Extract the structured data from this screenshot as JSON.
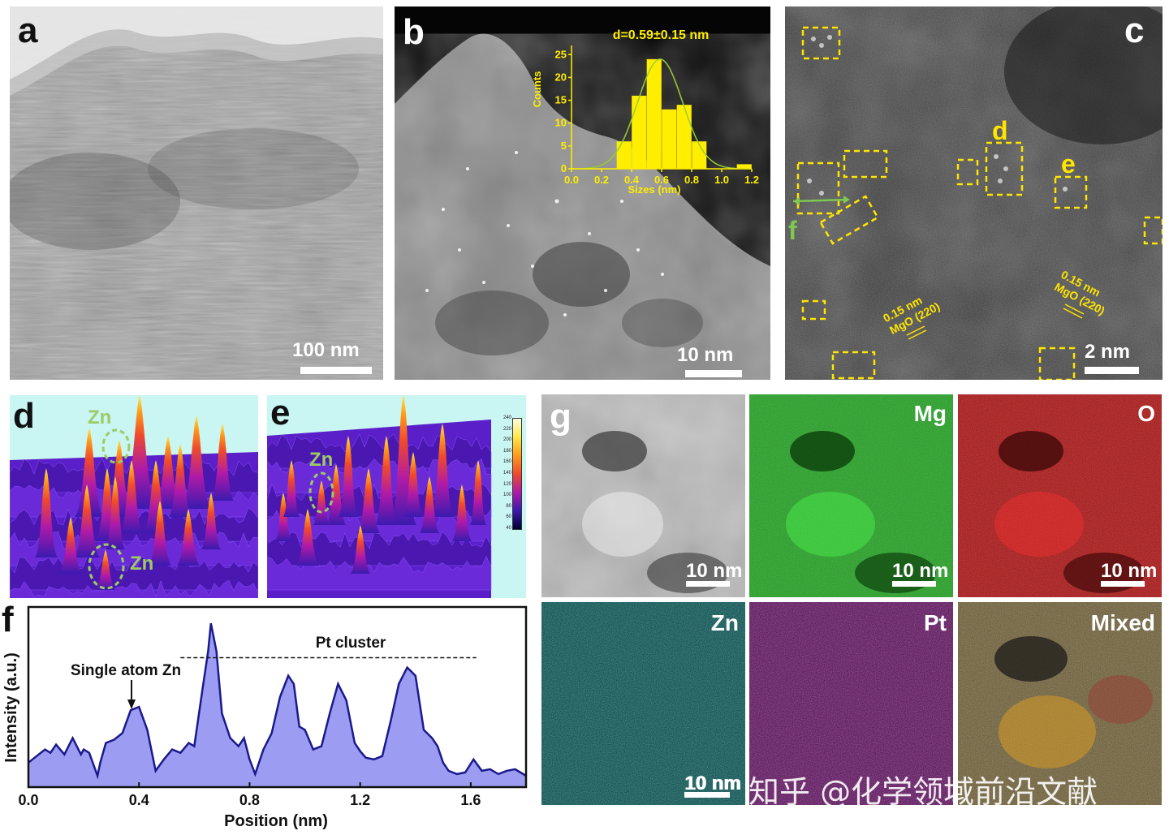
{
  "panels": {
    "a": {
      "label": "a",
      "scale": "100 nm"
    },
    "b": {
      "label": "b",
      "scale": "10 nm"
    },
    "c": {
      "label": "c",
      "scale": "2 nm",
      "box_d": "d",
      "box_e": "e",
      "box_f": "f",
      "lattice1": "0.15 nm",
      "lattice1b": "MgO (220)",
      "lattice2": "0.15 nm",
      "lattice2b": "MgO (220)"
    },
    "d": {
      "label": "d",
      "zn1": "Zn",
      "zn2": "Zn"
    },
    "e": {
      "label": "e",
      "zn": "Zn",
      "colorbar_ticks": [
        "240",
        "220",
        "200",
        "180",
        "160",
        "140",
        "120",
        "100",
        "80",
        "60",
        "40"
      ]
    },
    "f": {
      "label": "f"
    },
    "g": {
      "label": "g",
      "scale": "10 nm",
      "tiles": [
        "",
        "Mg",
        "O",
        "Zn",
        "Pt",
        "Mixed"
      ]
    }
  },
  "watermark": "知乎 @化学领域前沿文献",
  "colors": {
    "box": "#ffe500",
    "inset": "#ffee00",
    "zn_circle": "#9ccc65",
    "profile_fill": "#9b9cf2",
    "profile_line": "#1a1a8c"
  },
  "chart_data": [
    {
      "type": "bar",
      "title": "d=0.59±0.15 nm",
      "xlabel": "Sizes (nm)",
      "ylabel": "Counts",
      "x": [
        0.35,
        0.45,
        0.55,
        0.65,
        0.75,
        0.85,
        1.15
      ],
      "values": [
        6,
        16,
        24,
        13,
        14,
        6,
        1
      ],
      "xlim": [
        0.0,
        1.2
      ],
      "ylim": [
        0,
        27
      ],
      "xticks": [
        "0.0",
        "0.2",
        "0.4",
        "0.6",
        "0.8",
        "1.0",
        "1.2"
      ],
      "yticks": [
        "0",
        "5",
        "10",
        "15",
        "20",
        "25"
      ],
      "fit": {
        "type": "gaussian",
        "mean": 0.59,
        "sd": 0.15,
        "peak": 24
      }
    },
    {
      "type": "area",
      "xlabel": "Position (nm)",
      "ylabel": "Intensity (a.u.)",
      "xlim": [
        0.0,
        1.8
      ],
      "ylim": [
        0,
        1
      ],
      "xticks": [
        "0.0",
        "0.4",
        "0.8",
        "1.2",
        "1.6"
      ],
      "annotations": [
        {
          "text": "Single atom Zn",
          "x": 0.37
        },
        {
          "text": "Pt cluster",
          "x": 1.08
        }
      ],
      "reference_line": {
        "y": 0.74,
        "x_start": 0.55,
        "x_end": 1.62
      },
      "x": [
        0.0,
        0.03,
        0.06,
        0.08,
        0.1,
        0.13,
        0.16,
        0.19,
        0.2,
        0.22,
        0.25,
        0.26,
        0.28,
        0.31,
        0.34,
        0.37,
        0.4,
        0.43,
        0.46,
        0.49,
        0.52,
        0.55,
        0.58,
        0.6,
        0.63,
        0.65,
        0.66,
        0.68,
        0.7,
        0.73,
        0.76,
        0.78,
        0.8,
        0.82,
        0.85,
        0.88,
        0.91,
        0.94,
        0.96,
        0.98,
        1.0,
        1.03,
        1.06,
        1.09,
        1.12,
        1.15,
        1.18,
        1.2,
        1.22,
        1.25,
        1.28,
        1.31,
        1.34,
        1.37,
        1.4,
        1.43,
        1.46,
        1.48,
        1.5,
        1.52,
        1.55,
        1.58,
        1.61,
        1.64,
        1.67,
        1.7,
        1.73,
        1.76,
        1.8
      ],
      "values": [
        0.1,
        0.14,
        0.18,
        0.16,
        0.21,
        0.15,
        0.25,
        0.15,
        0.18,
        0.16,
        0.02,
        0.1,
        0.22,
        0.24,
        0.28,
        0.42,
        0.44,
        0.3,
        0.05,
        0.12,
        0.18,
        0.16,
        0.22,
        0.2,
        0.55,
        0.78,
        0.95,
        0.78,
        0.4,
        0.25,
        0.2,
        0.25,
        0.12,
        0.03,
        0.18,
        0.28,
        0.5,
        0.63,
        0.58,
        0.32,
        0.3,
        0.18,
        0.2,
        0.4,
        0.58,
        0.48,
        0.22,
        0.17,
        0.13,
        0.12,
        0.14,
        0.35,
        0.58,
        0.68,
        0.63,
        0.3,
        0.25,
        0.2,
        0.1,
        0.05,
        0.03,
        0.04,
        0.12,
        0.05,
        0.06,
        0.03,
        0.05,
        0.06,
        0.02
      ]
    }
  ]
}
